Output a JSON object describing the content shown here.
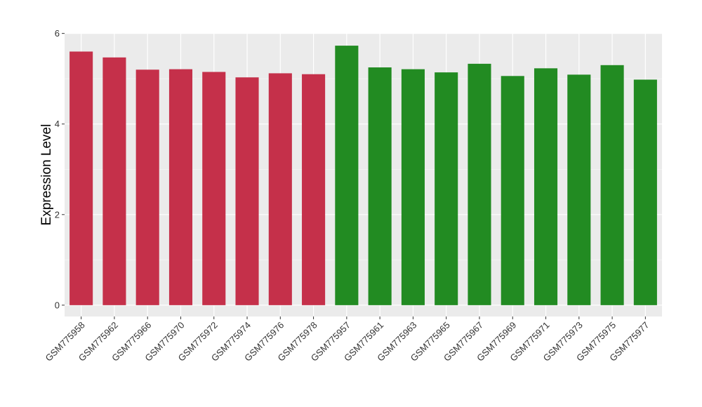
{
  "chart_data": {
    "type": "bar",
    "title": "",
    "xlabel": "",
    "ylabel": "Expression Level",
    "ylim": [
      -0.25,
      6.01
    ],
    "yticks": [
      0,
      2,
      4,
      6
    ],
    "grid": true,
    "legend": "none",
    "panel_background": "#ebebeb",
    "grid_color": "#ffffff",
    "categories": [
      "GSM775958",
      "GSM775962",
      "GSM775966",
      "GSM775970",
      "GSM775972",
      "GSM775974",
      "GSM775976",
      "GSM775978",
      "GSM775957",
      "GSM775961",
      "GSM775963",
      "GSM775965",
      "GSM775967",
      "GSM775969",
      "GSM775971",
      "GSM775973",
      "GSM775975",
      "GSM775977"
    ],
    "values": [
      5.6,
      5.47,
      5.2,
      5.21,
      5.15,
      5.03,
      5.12,
      5.1,
      5.73,
      5.25,
      5.21,
      5.14,
      5.33,
      5.06,
      5.23,
      5.09,
      5.3,
      4.98
    ],
    "colors": [
      "#c5304a",
      "#c5304a",
      "#c5304a",
      "#c5304a",
      "#c5304a",
      "#c5304a",
      "#c5304a",
      "#c5304a",
      "#228b22",
      "#228b22",
      "#228b22",
      "#228b22",
      "#228b22",
      "#228b22",
      "#228b22",
      "#228b22",
      "#228b22",
      "#228b22"
    ]
  }
}
